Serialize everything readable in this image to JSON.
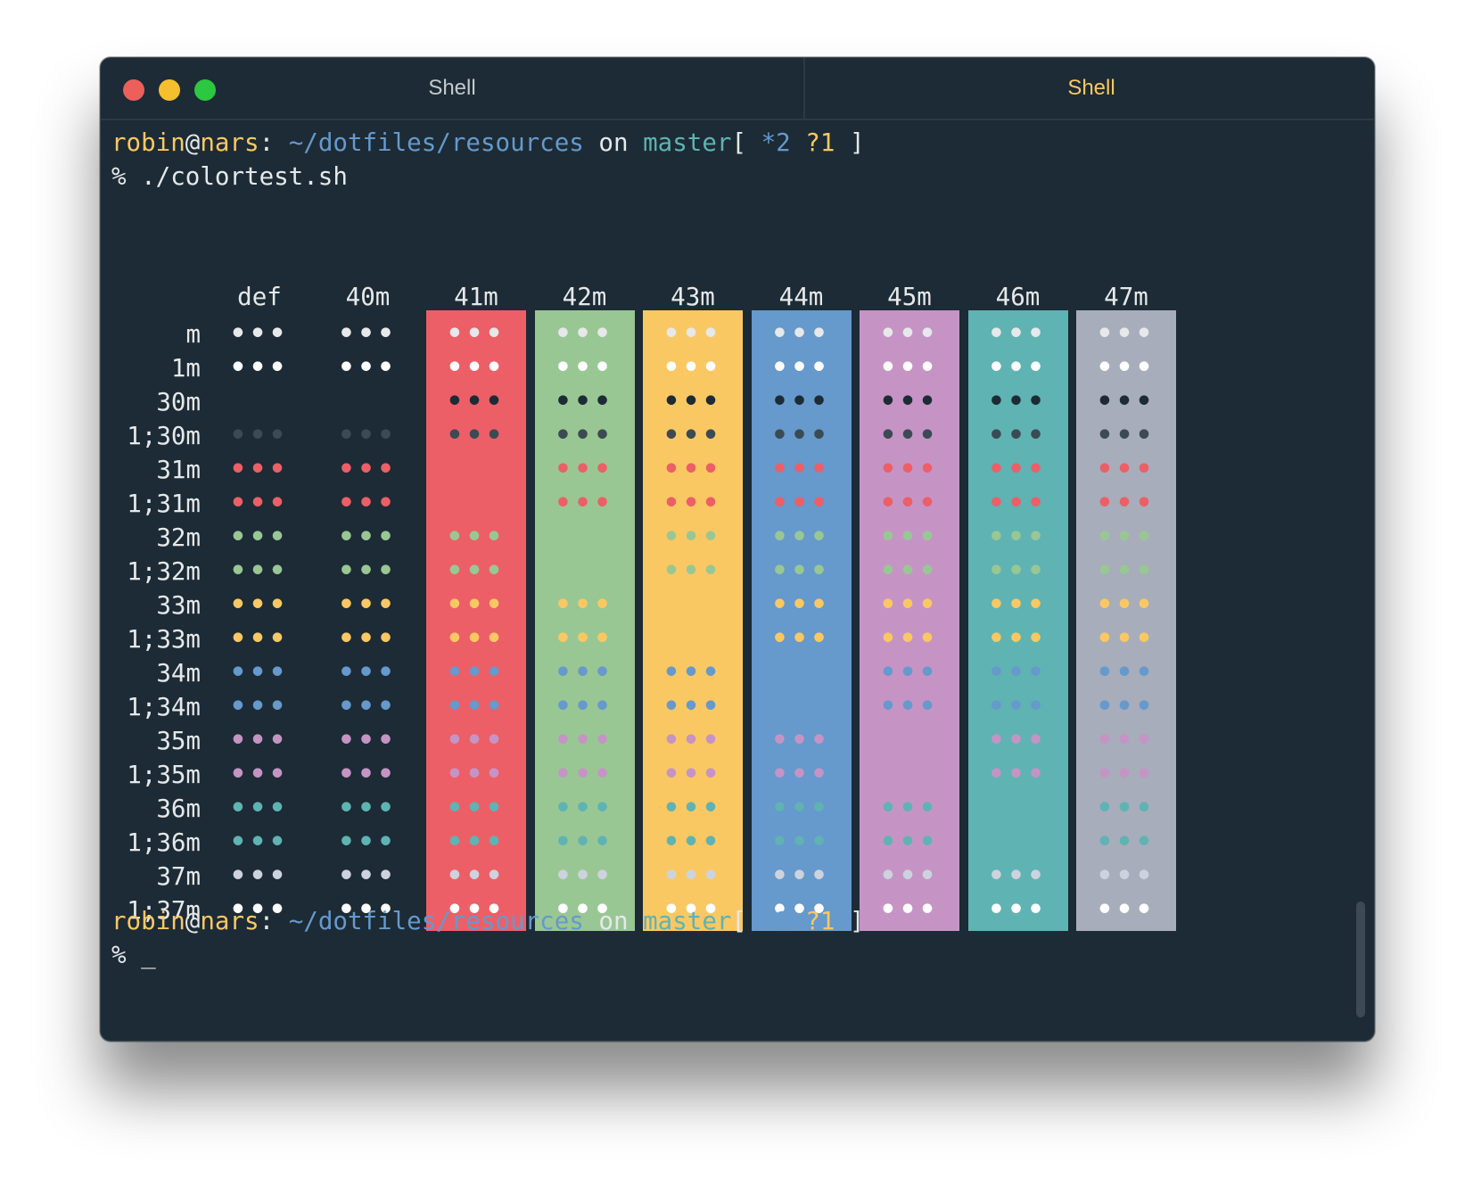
{
  "window": {
    "tabs": [
      {
        "label": "Shell",
        "active": false
      },
      {
        "label": "Shell",
        "active": true
      }
    ]
  },
  "prompt": {
    "user": "robin",
    "at": "@",
    "host": "nars",
    "colon": ":",
    "path": "~/dotfiles/resources",
    "on": "on",
    "branch": "master",
    "bracket_open": "[",
    "modified": "*2",
    "untracked": "?1",
    "bracket_close": "]"
  },
  "command": "% ./colortest.sh",
  "second_prompt_symbol": "%",
  "cursor": "_",
  "colortest": {
    "glyph": "•••",
    "columns": [
      "def",
      "40m",
      "41m",
      "42m",
      "43m",
      "44m",
      "45m",
      "46m",
      "47m"
    ],
    "rows": [
      "m",
      "1m",
      "30m",
      "1;30m",
      "31m",
      "1;31m",
      "32m",
      "1;32m",
      "33m",
      "1;33m",
      "34m",
      "1;34m",
      "35m",
      "1;35m",
      "36m",
      "1;36m",
      "37m",
      "1;37m"
    ],
    "background_colors": {
      "40m": "#1c2b35",
      "41m": "#ec5f67",
      "42m": "#99c794",
      "43m": "#fac863",
      "44m": "#6699cc",
      "45m": "#c594c5",
      "46m": "#5fb3b3",
      "47m": "#a7adba"
    },
    "foreground_colors": {
      "m": "#e6e8ea",
      "1m": "#ffffff",
      "30m": "#1c2b35",
      "1;30m": "#3b4a53",
      "31m": "#ec5f67",
      "1;31m": "#ec5f67",
      "32m": "#99c794",
      "1;32m": "#99c794",
      "33m": "#fac863",
      "1;33m": "#fac863",
      "34m": "#6699cc",
      "1;34m": "#6699cc",
      "35m": "#c594c5",
      "1;35m": "#c594c5",
      "36m": "#5fb3b3",
      "1;36m": "#5fb3b3",
      "37m": "#cdd3de",
      "1;37m": "#ffffff"
    }
  },
  "colors": {
    "terminal_bg": "#1c2b35",
    "close": "#ed5f5a",
    "minimize": "#f6bf2f",
    "maximize": "#2bc840"
  }
}
